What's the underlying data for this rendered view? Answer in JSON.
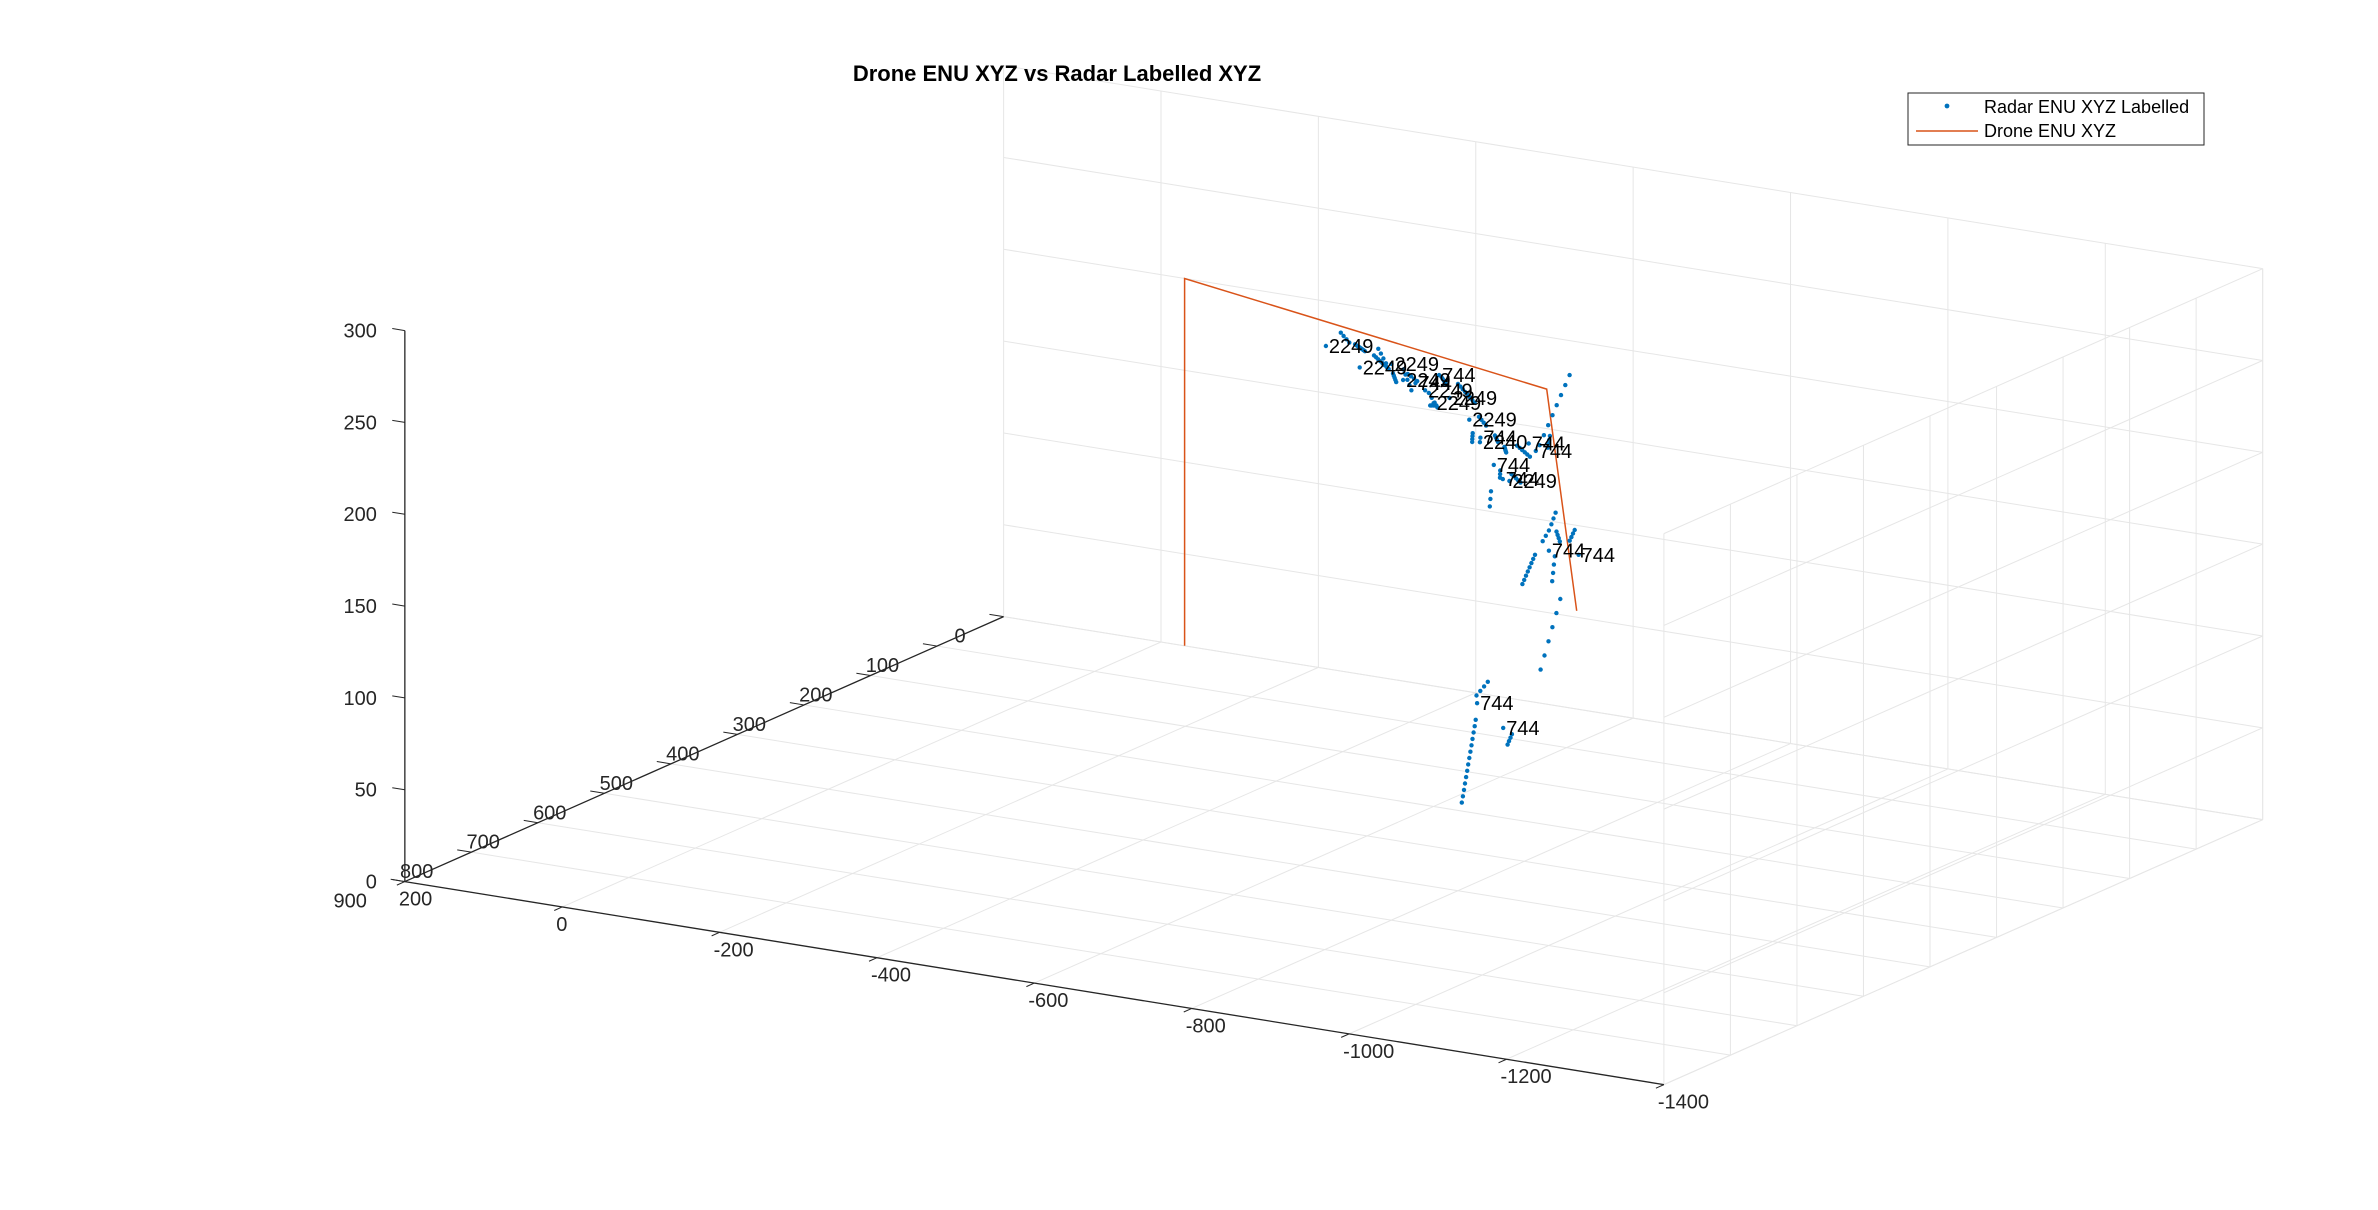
{
  "chart_data": {
    "type": "scatter3d",
    "title": "Drone ENU XYZ vs Radar Labelled XYZ",
    "xlabel": "",
    "ylabel": "",
    "zlabel": "",
    "xlim": [
      -1400,
      200
    ],
    "ylim": [
      0,
      900
    ],
    "zlim": [
      0,
      300
    ],
    "x_ticks": [
      "-1400",
      "-1200",
      "-1000",
      "-800",
      "-600",
      "-400",
      "-200",
      "0",
      "200"
    ],
    "y_ticks": [
      "0",
      "100",
      "200",
      "300",
      "400",
      "500",
      "600",
      "700",
      "800",
      "900"
    ],
    "z_ticks": [
      "0",
      "50",
      "100",
      "150",
      "200",
      "250",
      "300"
    ],
    "grid": true,
    "legend_position": "top-right",
    "colors": {
      "radar": "#0072BD",
      "drone": "#D95319",
      "grid": "#e6e6e6",
      "axis": "#262626"
    },
    "series": [
      {
        "name": "Radar ENU XYZ Labelled",
        "marker": "point"
      },
      {
        "name": "Drone ENU XYZ",
        "marker": "line"
      }
    ],
    "drone_path": [
      {
        "x": -1230,
        "y": 830,
        "z": 235
      },
      {
        "x": -600,
        "y": 130,
        "z": 200
      },
      {
        "x": -30,
        "y": 0,
        "z": 200
      },
      {
        "x": -30,
        "y": 0,
        "z": 0
      }
    ],
    "radar_labels": [
      {
        "text": "744",
        "x": -1021,
        "y": 580,
        "z": 211
      },
      {
        "text": "744",
        "x": -1091,
        "y": 776,
        "z": 153
      },
      {
        "text": "744",
        "x": -1007,
        "y": 716,
        "z": 151
      },
      {
        "text": "744",
        "x": -894,
        "y": 494,
        "z": 245
      },
      {
        "text": "744",
        "x": -868,
        "y": 474,
        "z": 244
      },
      {
        "text": "744",
        "x": -865,
        "y": 440,
        "z": 180
      },
      {
        "text": "744",
        "x": -737,
        "y": 358,
        "z": 197
      },
      {
        "text": "744",
        "x": -691,
        "y": 317,
        "z": 195
      },
      {
        "text": "2249",
        "x": -693,
        "y": 296,
        "z": 183
      },
      {
        "text": "2240",
        "x": -615,
        "y": 248,
        "z": 191
      },
      {
        "text": "744",
        "x": -575,
        "y": 200,
        "z": 183
      },
      {
        "text": "2249",
        "x": -577,
        "y": 219,
        "z": 196
      },
      {
        "text": "744",
        "x": -509,
        "y": 184,
        "z": 210
      },
      {
        "text": "2249",
        "x": -513,
        "y": 173,
        "z": 196
      },
      {
        "text": "2249",
        "x": -443,
        "y": 127,
        "z": 188
      },
      {
        "text": "744",
        "x": -446,
        "y": 145,
        "z": 195
      },
      {
        "text": "2249",
        "x": -447,
        "y": 119,
        "z": 180
      },
      {
        "text": "2249",
        "x": -364,
        "y": 84,
        "z": 190
      },
      {
        "text": "2249",
        "x": -339,
        "y": 37,
        "z": 172
      },
      {
        "text": "2249",
        "x": -272,
        "y": 23,
        "z": 172
      },
      {
        "text": "2249",
        "x": -207,
        "y": -3,
        "z": 175
      }
    ],
    "radar_segments": [
      {
        "start": {
          "x": -1101,
          "y": 702,
          "z": 212
        },
        "end": {
          "x": -1119,
          "y": 753,
          "z": 183
        },
        "n": 6
      },
      {
        "start": {
          "x": -1138,
          "y": 825,
          "z": 155
        },
        "end": {
          "x": -1124,
          "y": 802,
          "z": 156
        },
        "n": 4
      },
      {
        "start": {
          "x": -1117,
          "y": 869,
          "z": 129
        },
        "end": {
          "x": -1029,
          "y": 744,
          "z": 148
        },
        "n": 14
      },
      {
        "start": {
          "x": -1030,
          "y": 727,
          "z": 166
        },
        "end": {
          "x": -1052,
          "y": 770,
          "z": 167
        },
        "n": 4
      },
      {
        "start": {
          "x": -1029,
          "y": 629,
          "z": 205
        },
        "end": {
          "x": -1006,
          "y": 598,
          "z": 212
        },
        "n": 4
      },
      {
        "start": {
          "x": -1014,
          "y": 585,
          "z": 219
        },
        "end": {
          "x": -1000,
          "y": 561,
          "z": 220
        },
        "n": 4
      },
      {
        "start": {
          "x": -987,
          "y": 568,
          "z": 214
        },
        "end": {
          "x": -971,
          "y": 554,
          "z": 216
        },
        "n": 4
      },
      {
        "start": {
          "x": -951,
          "y": 538,
          "z": 216
        },
        "end": {
          "x": -942,
          "y": 521,
          "z": 219
        },
        "n": 3
      },
      {
        "start": {
          "x": -910,
          "y": 495,
          "z": 248
        },
        "end": {
          "x": -895,
          "y": 474,
          "z": 250
        },
        "n": 4
      },
      {
        "start": {
          "x": -882,
          "y": 429,
          "z": 275
        },
        "end": {
          "x": -870,
          "y": 460,
          "z": 241
        },
        "n": 8
      },
      {
        "start": {
          "x": -926,
          "y": 552,
          "z": 184
        },
        "end": {
          "x": -876,
          "y": 474,
          "z": 184
        },
        "n": 8
      },
      {
        "start": {
          "x": -874,
          "y": 460,
          "z": 189
        },
        "end": {
          "x": -865,
          "y": 440,
          "z": 191
        },
        "n": 3
      },
      {
        "start": {
          "x": -784,
          "y": 387,
          "z": 203
        },
        "end": {
          "x": -754,
          "y": 365,
          "z": 202
        },
        "n": 5
      },
      {
        "start": {
          "x": -740,
          "y": 381,
          "z": 186
        },
        "end": {
          "x": -717,
          "y": 352,
          "z": 188
        },
        "n": 3
      },
      {
        "start": {
          "x": -720,
          "y": 342,
          "z": 194
        },
        "end": {
          "x": -705,
          "y": 324,
          "z": 194
        },
        "n": 3
      },
      {
        "start": {
          "x": -719,
          "y": 296,
          "z": 198
        },
        "end": {
          "x": -680,
          "y": 269,
          "z": 197
        },
        "n": 6
      },
      {
        "start": {
          "x": -661,
          "y": 263,
          "z": 191
        },
        "end": {
          "x": -636,
          "y": 236,
          "z": 188
        },
        "n": 5
      },
      {
        "start": {
          "x": -631,
          "y": 240,
          "z": 191
        },
        "end": {
          "x": -607,
          "y": 216,
          "z": 189
        },
        "n": 4
      },
      {
        "start": {
          "x": -605,
          "y": 227,
          "z": 196
        },
        "end": {
          "x": -580,
          "y": 208,
          "z": 196
        },
        "n": 4
      },
      {
        "start": {
          "x": -584,
          "y": 223,
          "z": 185
        },
        "end": {
          "x": -566,
          "y": 201,
          "z": 185
        },
        "n": 4
      },
      {
        "start": {
          "x": -577,
          "y": 211,
          "z": 204
        },
        "end": {
          "x": -522,
          "y": 171,
          "z": 204
        },
        "n": 8
      },
      {
        "start": {
          "x": -524,
          "y": 191,
          "z": 207
        },
        "end": {
          "x": -496,
          "y": 165,
          "z": 205
        },
        "n": 5
      },
      {
        "start": {
          "x": -506,
          "y": 183,
          "z": 192
        },
        "end": {
          "x": -479,
          "y": 164,
          "z": 195
        },
        "n": 4
      },
      {
        "start": {
          "x": -470,
          "y": 142,
          "z": 184
        },
        "end": {
          "x": -441,
          "y": 117,
          "z": 178
        },
        "n": 5
      },
      {
        "start": {
          "x": -455,
          "y": 153,
          "z": 198
        },
        "end": {
          "x": -431,
          "y": 139,
          "z": 198
        },
        "n": 4
      },
      {
        "start": {
          "x": -434,
          "y": 137,
          "z": 189
        },
        "end": {
          "x": -402,
          "y": 111,
          "z": 194
        },
        "n": 5
      },
      {
        "start": {
          "x": -373,
          "y": 103,
          "z": 194
        },
        "end": {
          "x": -343,
          "y": 79,
          "z": 196
        },
        "n": 4
      },
      {
        "start": {
          "x": -364,
          "y": 77,
          "z": 179
        },
        "end": {
          "x": -343,
          "y": 57,
          "z": 179
        },
        "n": 5
      },
      {
        "start": {
          "x": -341,
          "y": 61,
          "z": 182
        },
        "end": {
          "x": -291,
          "y": 24,
          "z": 180
        },
        "n": 8
      },
      {
        "start": {
          "x": -293,
          "y": 40,
          "z": 185
        },
        "end": {
          "x": -250,
          "y": 4,
          "z": 180
        },
        "n": 8
      },
      {
        "start": {
          "x": -241,
          "y": 2,
          "z": 180
        },
        "end": {
          "x": -220,
          "y": -10,
          "z": 182
        },
        "n": 4
      }
    ]
  }
}
